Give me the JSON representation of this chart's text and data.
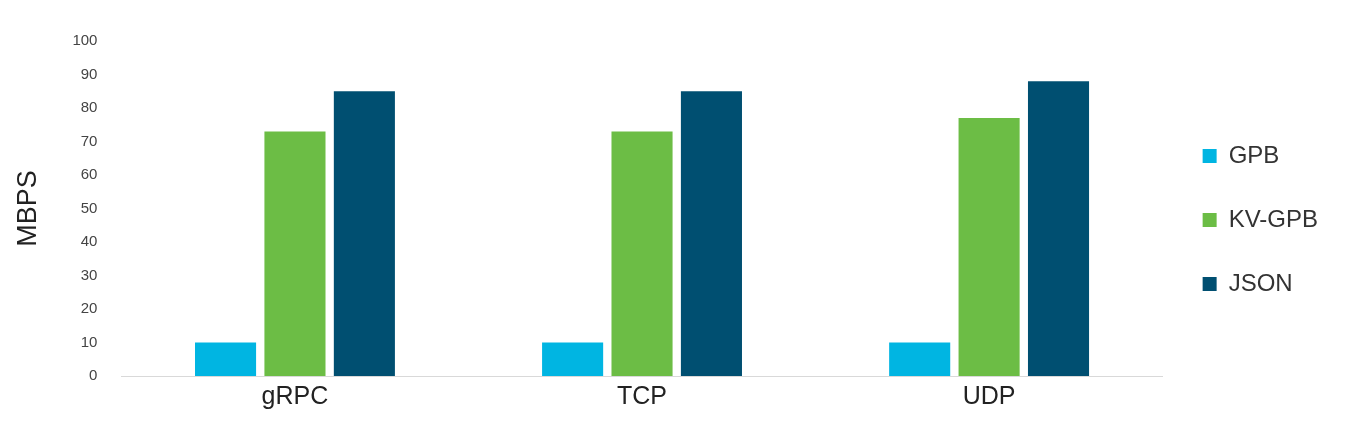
{
  "chart_data": {
    "type": "bar",
    "ylabel": "MBPS",
    "categories": [
      "gRPC",
      "TCP",
      "UDP"
    ],
    "series": [
      {
        "name": "GPB",
        "color": "#00b5e2",
        "values": [
          10,
          10,
          10
        ]
      },
      {
        "name": "KV-GPB",
        "color": "#6cbd45",
        "values": [
          73,
          73,
          77
        ]
      },
      {
        "name": "JSON",
        "color": "#004f71",
        "values": [
          85,
          85,
          88
        ]
      }
    ],
    "ylim": [
      0,
      100
    ],
    "yticks": [
      0,
      10,
      20,
      30,
      40,
      50,
      60,
      70,
      80,
      90,
      100
    ],
    "grid": false,
    "legend": "right"
  }
}
